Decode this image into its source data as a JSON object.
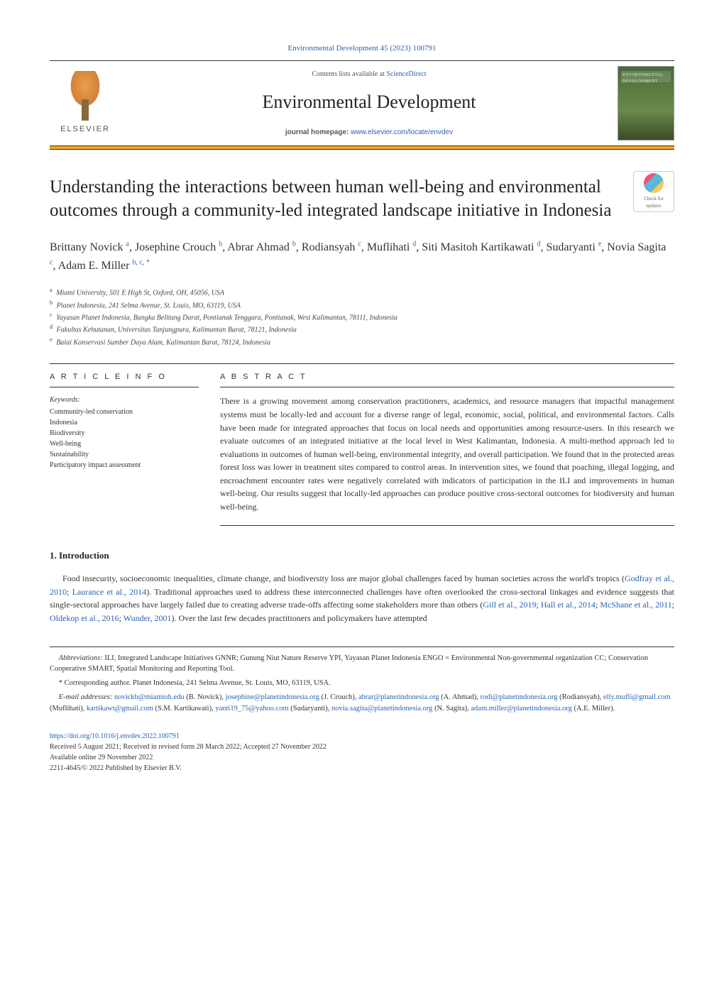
{
  "journal_ref": "Environmental Development 45 (2023) 100791",
  "header": {
    "elsevier_label": "ELSEVIER",
    "contents_prefix": "Contents lists available at ",
    "contents_link": "ScienceDirect",
    "journal_name": "Environmental Development",
    "homepage_prefix": "journal homepage: ",
    "homepage_link": "www.elsevier.com/locate/envdev",
    "cover_title": "ENVIRONMENTAL DEVELOPMENT"
  },
  "check_updates": {
    "line1": "Check for",
    "line2": "updates"
  },
  "title": "Understanding the interactions between human well-being and environmental outcomes through a community-led integrated landscape initiative in Indonesia",
  "authors_html": "Brittany Novick <sup><a>a</a></sup>, Josephine Crouch <sup><a>b</a></sup>, Abrar Ahmad <sup><a>b</a></sup>, Rodiansyah <sup><a>c</a></sup>, Muflihati <sup><a>d</a></sup>, Siti Masitoh Kartikawati <sup><a>d</a></sup>, Sudaryanti <sup><a>e</a></sup>, Novia Sagita <sup><a>c</a></sup>, Adam E. Miller <sup><a>b</a>, <a>c</a>, *</sup>",
  "affiliations": [
    {
      "sup": "a",
      "text": "Miami University, 501 E High St, Oxford, OH, 45056, USA"
    },
    {
      "sup": "b",
      "text": "Planet Indonesia, 241 Selma Avenue, St. Louis, MO, 63119, USA"
    },
    {
      "sup": "c",
      "text": "Yayasan Planet Indonesia, Bangka Belitung Darat, Pontianak Tenggara, Pontianak, West Kalimantan, 78111, Indonesia"
    },
    {
      "sup": "d",
      "text": "Fakultas Kehutanan, Universitas Tanjungpura, Kalimantan Barat, 78121, Indonesia"
    },
    {
      "sup": "e",
      "text": "Balai Konservasi Sumber Daya Alam, Kalimantan Barat, 78124, Indonesia"
    }
  ],
  "article_info_heading": "A R T I C L E  I N F O",
  "keywords_label": "Keywords:",
  "keywords": [
    "Community-led conservation",
    "Indonesia",
    "Biodiversity",
    "Well-being",
    "Sustainability",
    "Participatory impact assessment"
  ],
  "abstract_heading": "A B S T R A C T",
  "abstract": "There is a growing movement among conservation practitioners, academics, and resource managers that impactful management systems must be locally-led and account for a diverse range of legal, economic, social, political, and environmental factors. Calls have been made for integrated approaches that focus on local needs and opportunities among resource-users. In this research we evaluate outcomes of an integrated initiative at the local level in West Kalimantan, Indonesia. A multi-method approach led to evaluations in outcomes of human well-being, environmental integrity, and overall participation. We found that in the protected areas forest loss was lower in treatment sites compared to control areas. In intervention sites, we found that poaching, illegal logging, and encroachment encounter rates were negatively correlated with indicators of participation in the ILI and improvements in human well-being. Our results suggest that locally-led approaches can produce positive cross-sectoral outcomes for biodiversity and human well-being.",
  "intro": {
    "heading": "1.  Introduction",
    "para_html": "Food insecurity, socioeconomic inequalities, climate change, and biodiversity loss are major global challenges faced by human societies across the world's tropics (<a>Godfray et al., 2010</a>; <a>Laurance et al., 2014</a>). Traditional approaches used to address these interconnected challenges have often overlooked the cross-sectoral linkages and evidence suggests that single-sectoral approaches have largely failed due to creating adverse trade-offs affecting some stakeholders more than others (<a>Gill et al., 2019</a>; <a>Hall et al., 2014</a>; <a>McShane et al., 2011</a>; <a>Oldekop et al., 2016</a>; <a>Wunder, 2001</a>). Over the last few decades practitioners and policymakers have attempted"
  },
  "footnotes": {
    "abbrev_label": "Abbreviations:",
    "abbrev_text": " ILI, Integrated Landscape Initiatives GNNR; Gunung Niut Nature Reserve YPI, Yayasan Planet Indonesia ENGO = Environmental Non-governmental organization CC; Conservation Cooperative SMART, Spatial Monitoring and Reporting Tool.",
    "corresponding": "* Corresponding author. Planet Indonesia, 241 Selma Avenue, St. Louis, MO, 63119, USA.",
    "emails_label": "E-mail addresses:",
    "emails_html": " <a>novickb@miamioh.edu</a> (B. Novick), <a>josephine@planetindonesia.org</a> (J. Crouch), <a>abrar@planetindonesia.org</a> (A. Ahmad), <a>rodi@planetindonesia.org</a> (Rodiansyah), <a>elly.mufli@gmail.com</a> (Muflihati), <a>kartikawt@gmail.com</a> (S.M. Kartikawati), <a>yanti19_75@yahoo.com</a> (Sudaryanti), <a>novia.sagita@planetindonesia.org</a> (N. Sagita), <a>adam.miller@planetindonesia.org</a> (A.E. Miller)."
  },
  "footer": {
    "doi": "https://doi.org/10.1016/j.envdev.2022.100791",
    "history": "Received 5 August 2021; Received in revised form 28 March 2022; Accepted 27 November 2022",
    "available": "Available online 29 November 2022",
    "copyright": "2211-4645/© 2022 Published by Elsevier B.V."
  },
  "colors": {
    "link": "#2962b3",
    "accent_bar": "#f5a623",
    "text": "#333333",
    "rule": "#333333"
  }
}
